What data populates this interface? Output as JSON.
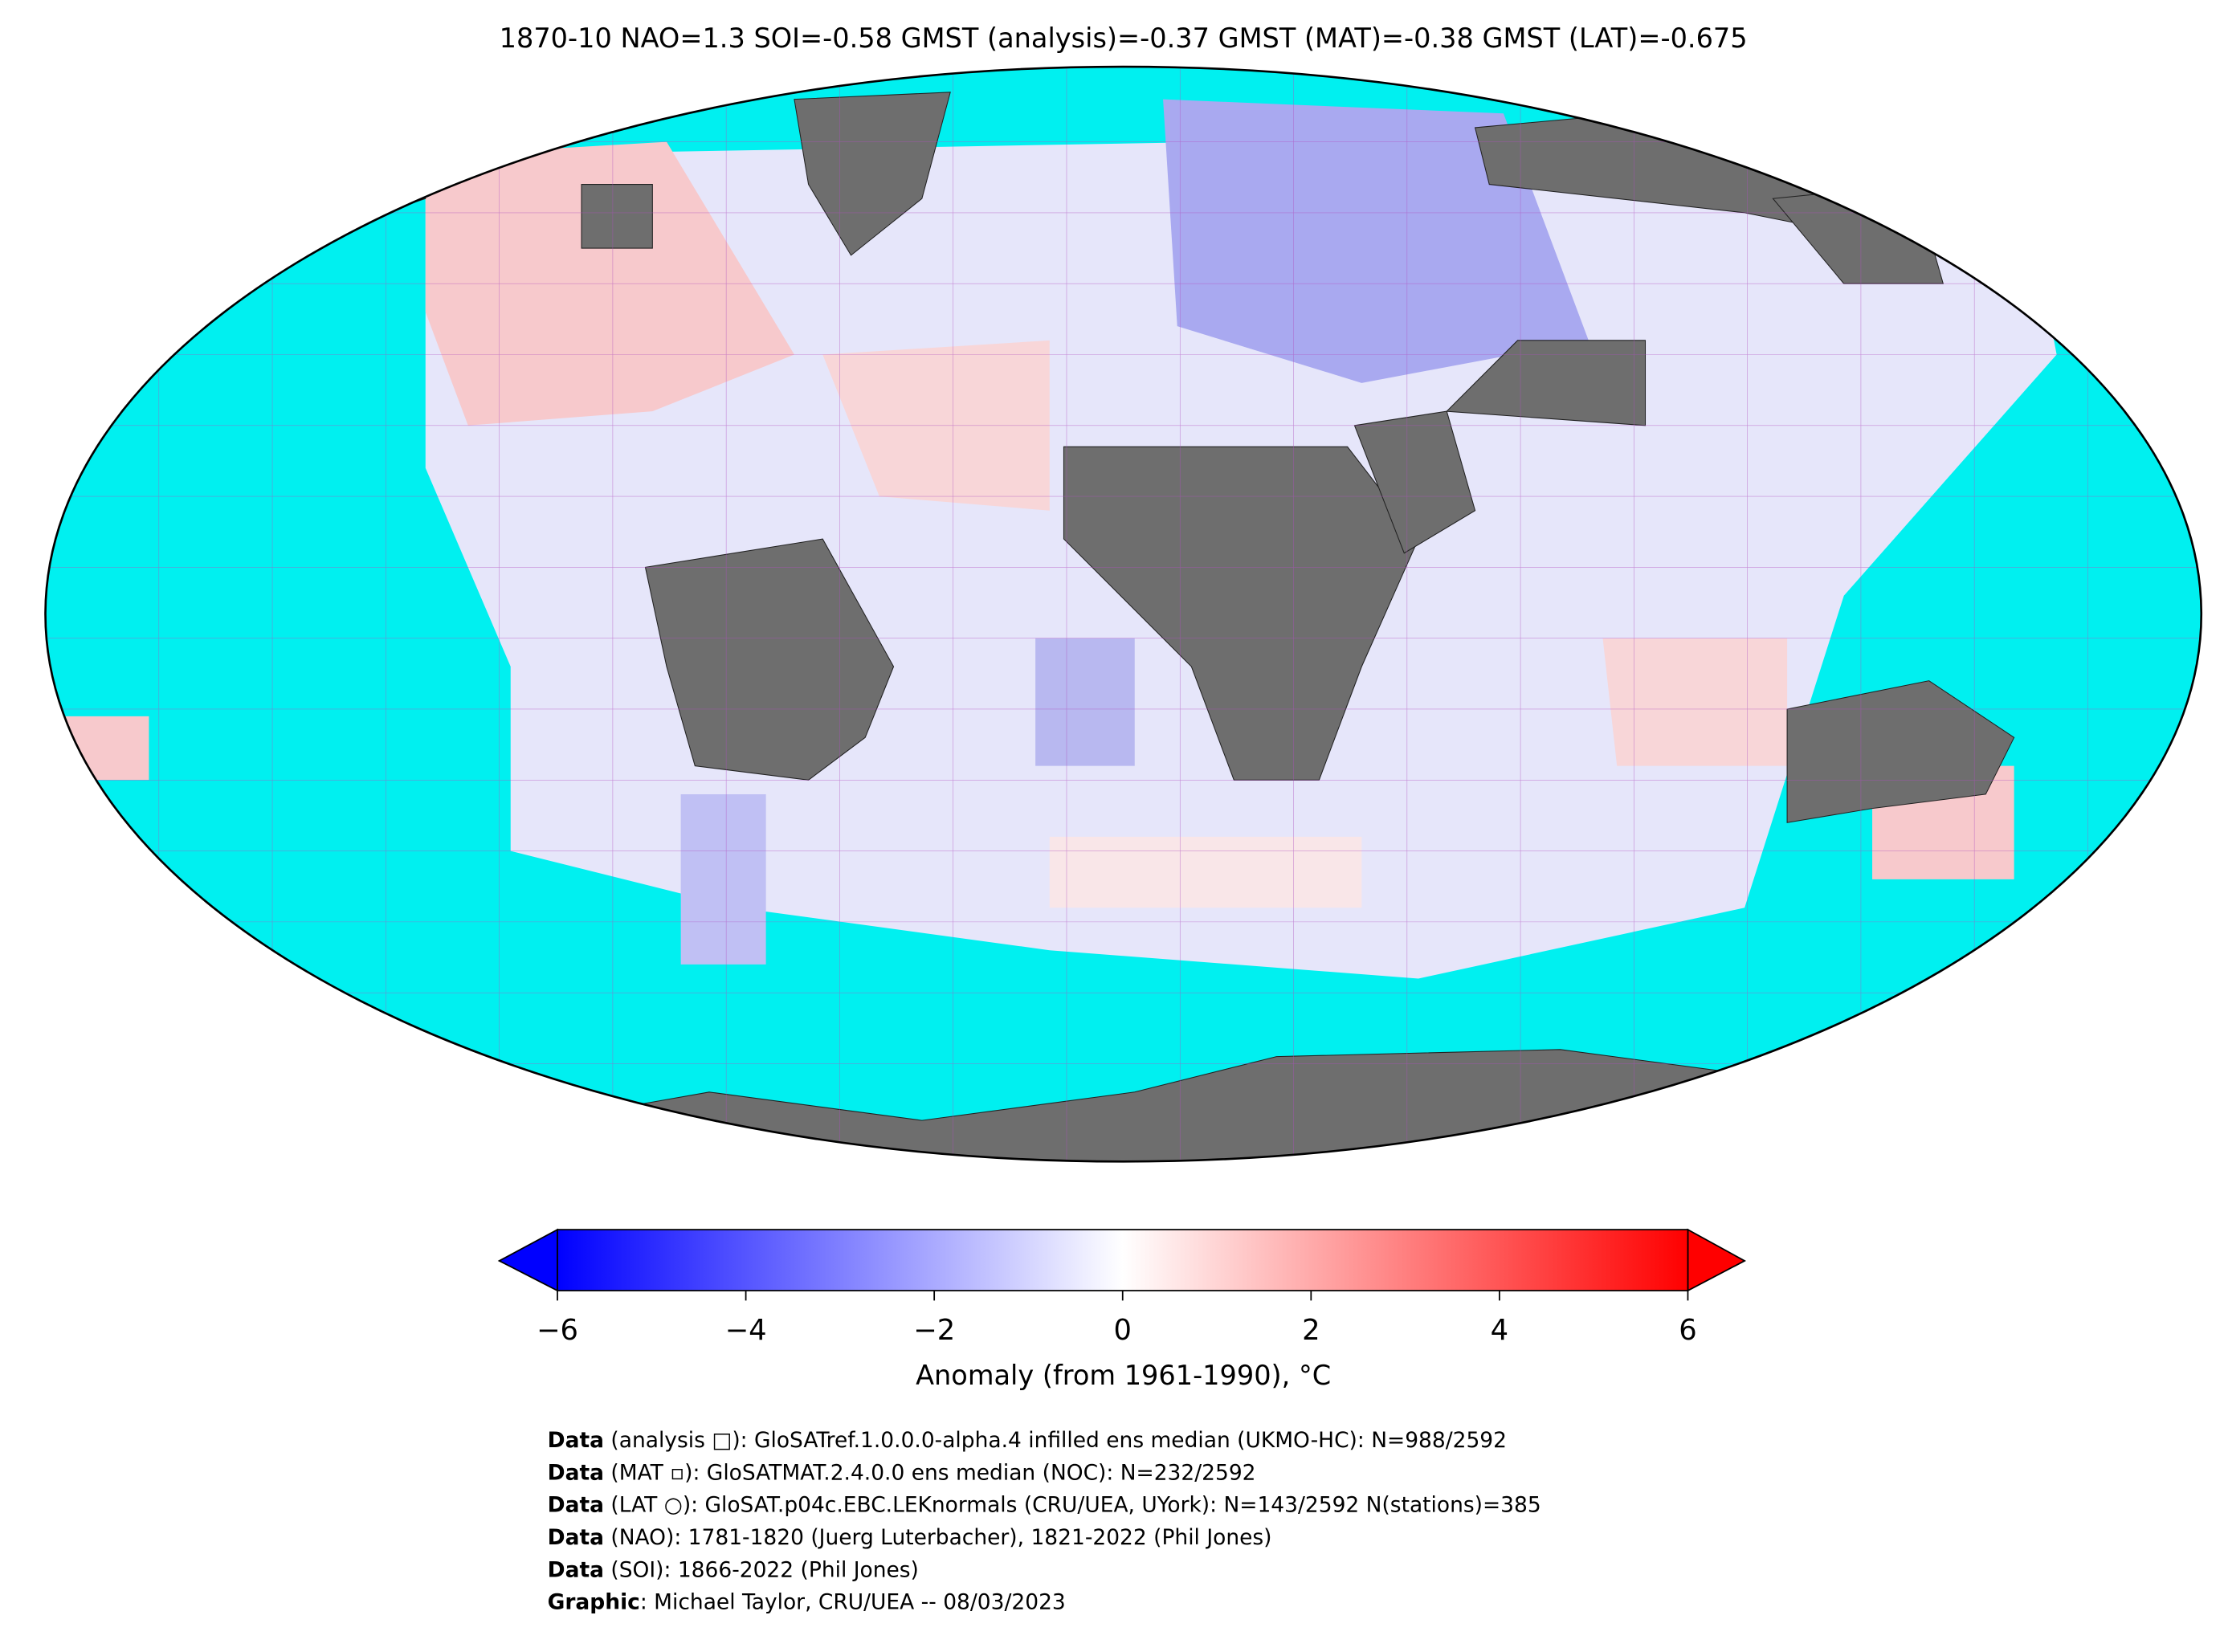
{
  "title": "1870-10 NAO=1.3 SOI=-0.58 GMST (analysis)=-0.37 GMST (MAT)=-0.38 GMST (LAT)=-0.675",
  "colorbar": {
    "lim": [
      -6,
      6
    ],
    "ticks": [
      {
        "value": -6,
        "label": "−6"
      },
      {
        "value": -4,
        "label": "−4"
      },
      {
        "value": -2,
        "label": "−2"
      },
      0,
      2,
      4,
      6
    ],
    "label": "Anomaly (from 1961-1990), °C"
  },
  "footer": [
    {
      "label": "Data",
      "text": " (analysis □): GloSATref.1.0.0.0-alpha.4 infilled ens median (UKMO-HC): N=988/2592"
    },
    {
      "label": "Data",
      "text": " (MAT ▫): GloSATMAT.2.4.0.0 ens median (NOC): N=232/2592"
    },
    {
      "label": "Data",
      "text": " (LAT ○): GloSAT.p04c.EBC.LEKnormals (CRU/UEA, UYork): N=143/2592 N(stations)=385"
    },
    {
      "label": "Data",
      "text": " (NAO): 1781-1820 (Juerg Luterbacher), 1821-2022 (Phil Jones)"
    },
    {
      "label": "Data",
      "text": " (SOI): 1866-2022 (Phil Jones)"
    },
    {
      "label": "Graphic",
      "text": ": Michael Taylor, CRU/UEA -- 08/03/2023"
    }
  ]
}
